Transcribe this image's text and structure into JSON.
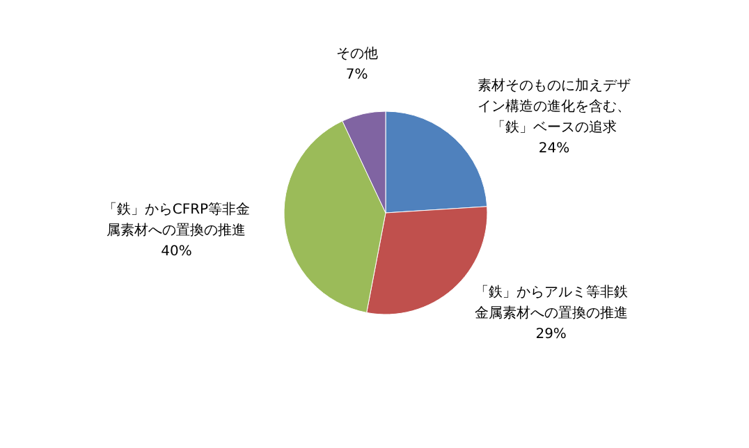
{
  "chart_data": {
    "type": "pie",
    "categories": [
      "素材そのものに加えデザイン構造の進化を含む、「鉄」ベースの追求",
      "「鉄」からアルミ等非鉄金属素材への置換の推進",
      "「鉄」からCFRP等非金属素材への置換の推進",
      "その他"
    ],
    "values": [
      24,
      29,
      40,
      7
    ],
    "colors": [
      "#4f81bd",
      "#c0504d",
      "#9bbb59",
      "#8064a2"
    ],
    "value_labels": [
      "24%",
      "29%",
      "40%",
      "7%"
    ]
  }
}
